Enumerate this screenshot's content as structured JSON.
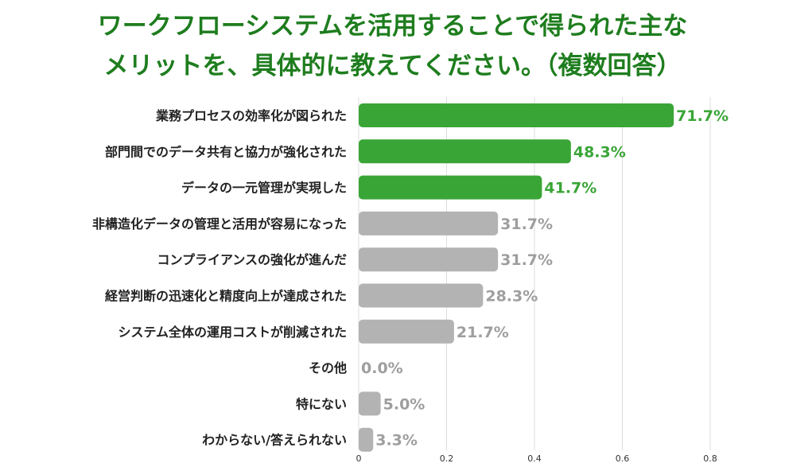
{
  "colors": {
    "highlight": "#3aa537",
    "normal": "#b3b3b3",
    "highlight_text": "#3aa537",
    "normal_text": "#9e9e9e",
    "title": "#1e7d1e",
    "grid": "#dddddd"
  },
  "chart_data": {
    "type": "bar",
    "orientation": "horizontal",
    "title_lines": [
      "ワークフローシステムを活用することで得られた主な",
      "メリットを、具体的に教えてください。（複数回答）"
    ],
    "categories": [
      "業務プロセスの効率化が図られた",
      "部門間でのデータ共有と協力が強化された",
      "データの一元管理が実現した",
      "非構造化データの管理と活用が容易になった",
      "コンプライアンスの強化が進んだ",
      "経営判断の迅速化と精度向上が達成された",
      "システム全体の運用コストが削減された",
      "その他",
      "特にない",
      "わからない/答えられない"
    ],
    "values": [
      0.717,
      0.483,
      0.417,
      0.317,
      0.317,
      0.283,
      0.217,
      0.0,
      0.05,
      0.033
    ],
    "value_labels": [
      "71.7%",
      "48.3%",
      "41.7%",
      "31.7%",
      "31.7%",
      "28.3%",
      "21.7%",
      "0.0%",
      "5.0%",
      "3.3%"
    ],
    "highlighted": [
      true,
      true,
      true,
      false,
      false,
      false,
      false,
      false,
      false,
      false
    ],
    "xlim": [
      0,
      0.8
    ],
    "xticks": [
      0,
      0.2,
      0.4,
      0.6,
      0.8
    ],
    "xtick_labels": [
      "0",
      "0.2",
      "0.4",
      "0.6",
      "0.8"
    ],
    "grid": true
  }
}
